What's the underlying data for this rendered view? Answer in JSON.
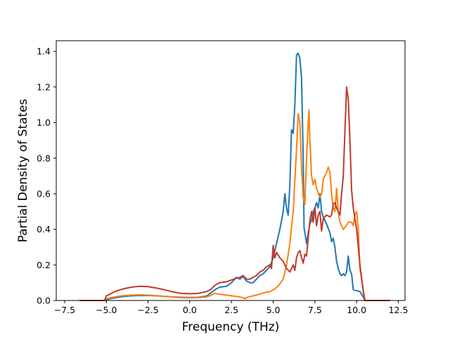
{
  "chart_data": {
    "type": "line",
    "title": "",
    "xlabel": "Frequency (THz)",
    "ylabel": "Partial Density of States",
    "xlim": [
      -8.0,
      12.9
    ],
    "ylim": [
      0.0,
      1.46
    ],
    "x_ticks": [
      -7.5,
      -5.0,
      -2.5,
      0.0,
      2.5,
      5.0,
      7.5,
      10.0,
      12.5
    ],
    "x_tick_labels": [
      "−7.5",
      "−5.0",
      "−2.5",
      "0.0",
      "2.5",
      "5.0",
      "7.5",
      "10.0",
      "12.5"
    ],
    "y_ticks": [
      0.0,
      0.2,
      0.4,
      0.6,
      0.8,
      1.0,
      1.2,
      1.4
    ],
    "y_tick_labels": [
      "0.0",
      "0.2",
      "0.4",
      "0.6",
      "0.8",
      "1.0",
      "1.2",
      "1.4"
    ],
    "grid": false,
    "legend": "none",
    "series": [
      {
        "color": "#1f77b4",
        "points": [
          [
            -6.6,
            0
          ],
          [
            -5.1,
            0
          ],
          [
            -5.0,
            0.005
          ],
          [
            -4.5,
            0.015
          ],
          [
            -4.0,
            0.022
          ],
          [
            -3.5,
            0.026
          ],
          [
            -3.0,
            0.028
          ],
          [
            -2.5,
            0.028
          ],
          [
            -2.0,
            0.026
          ],
          [
            -1.5,
            0.023
          ],
          [
            -1.0,
            0.02
          ],
          [
            -0.5,
            0.018
          ],
          [
            0.0,
            0.017
          ],
          [
            0.5,
            0.018
          ],
          [
            1.0,
            0.025
          ],
          [
            1.3,
            0.045
          ],
          [
            1.5,
            0.06
          ],
          [
            1.8,
            0.075
          ],
          [
            2.2,
            0.08
          ],
          [
            2.5,
            0.1
          ],
          [
            2.8,
            0.13
          ],
          [
            3.0,
            0.12
          ],
          [
            3.2,
            0.135
          ],
          [
            3.4,
            0.11
          ],
          [
            3.6,
            0.1
          ],
          [
            3.8,
            0.1
          ],
          [
            4.0,
            0.12
          ],
          [
            4.2,
            0.14
          ],
          [
            4.4,
            0.15
          ],
          [
            4.6,
            0.17
          ],
          [
            4.8,
            0.19
          ],
          [
            5.0,
            0.24
          ],
          [
            5.2,
            0.32
          ],
          [
            5.4,
            0.4
          ],
          [
            5.6,
            0.5
          ],
          [
            5.7,
            0.6
          ],
          [
            5.8,
            0.52
          ],
          [
            5.9,
            0.48
          ],
          [
            6.0,
            0.65
          ],
          [
            6.1,
            0.96
          ],
          [
            6.2,
            0.94
          ],
          [
            6.3,
            1.1
          ],
          [
            6.4,
            1.38
          ],
          [
            6.5,
            1.39
          ],
          [
            6.6,
            1.36
          ],
          [
            6.7,
            1.25
          ],
          [
            6.8,
            0.8
          ],
          [
            6.85,
            0.41
          ],
          [
            6.9,
            0.38
          ],
          [
            7.0,
            0.32
          ],
          [
            7.1,
            0.38
          ],
          [
            7.2,
            0.43
          ],
          [
            7.3,
            0.45
          ],
          [
            7.4,
            0.5
          ],
          [
            7.5,
            0.52
          ],
          [
            7.6,
            0.55
          ],
          [
            7.7,
            0.52
          ],
          [
            7.8,
            0.6
          ],
          [
            7.9,
            0.5
          ],
          [
            8.0,
            0.47
          ],
          [
            8.2,
            0.43
          ],
          [
            8.4,
            0.38
          ],
          [
            8.5,
            0.33
          ],
          [
            8.6,
            0.35
          ],
          [
            8.7,
            0.3
          ],
          [
            8.8,
            0.22
          ],
          [
            8.9,
            0.18
          ],
          [
            9.0,
            0.15
          ],
          [
            9.1,
            0.14
          ],
          [
            9.2,
            0.15
          ],
          [
            9.3,
            0.14
          ],
          [
            9.4,
            0.16
          ],
          [
            9.5,
            0.25
          ],
          [
            9.6,
            0.17
          ],
          [
            9.7,
            0.15
          ],
          [
            9.8,
            0.06
          ],
          [
            10.0,
            0.055
          ],
          [
            10.2,
            0.05
          ],
          [
            10.4,
            0.02
          ],
          [
            10.5,
            0.0
          ],
          [
            12.0,
            0.0
          ]
        ]
      },
      {
        "color": "#ff7f0e",
        "points": [
          [
            -6.6,
            0
          ],
          [
            -5.1,
            0
          ],
          [
            -5.0,
            0.01
          ],
          [
            -4.5,
            0.02
          ],
          [
            -4.0,
            0.027
          ],
          [
            -3.5,
            0.03
          ],
          [
            -3.0,
            0.032
          ],
          [
            -2.5,
            0.03
          ],
          [
            -2.0,
            0.027
          ],
          [
            -1.5,
            0.023
          ],
          [
            -1.0,
            0.019
          ],
          [
            -0.5,
            0.016
          ],
          [
            0.0,
            0.015
          ],
          [
            0.5,
            0.016
          ],
          [
            1.0,
            0.02
          ],
          [
            1.3,
            0.03
          ],
          [
            1.5,
            0.04
          ],
          [
            1.8,
            0.035
          ],
          [
            2.2,
            0.03
          ],
          [
            2.6,
            0.025
          ],
          [
            3.0,
            0.02
          ],
          [
            3.2,
            0.015
          ],
          [
            3.3,
            0.01
          ],
          [
            3.5,
            0.02
          ],
          [
            4.0,
            0.03
          ],
          [
            4.5,
            0.045
          ],
          [
            4.8,
            0.05
          ],
          [
            5.0,
            0.06
          ],
          [
            5.3,
            0.08
          ],
          [
            5.6,
            0.12
          ],
          [
            5.8,
            0.2
          ],
          [
            6.0,
            0.32
          ],
          [
            6.2,
            0.5
          ],
          [
            6.4,
            0.85
          ],
          [
            6.5,
            1.05
          ],
          [
            6.6,
            1.0
          ],
          [
            6.7,
            0.75
          ],
          [
            6.8,
            0.58
          ],
          [
            6.9,
            0.54
          ],
          [
            7.0,
            0.8
          ],
          [
            7.1,
            1.0
          ],
          [
            7.15,
            1.07
          ],
          [
            7.2,
            0.9
          ],
          [
            7.3,
            0.7
          ],
          [
            7.4,
            0.65
          ],
          [
            7.5,
            0.68
          ],
          [
            7.6,
            0.63
          ],
          [
            7.8,
            0.58
          ],
          [
            7.9,
            0.6
          ],
          [
            8.0,
            0.68
          ],
          [
            8.2,
            0.72
          ],
          [
            8.3,
            0.75
          ],
          [
            8.4,
            0.72
          ],
          [
            8.5,
            0.6
          ],
          [
            8.6,
            0.52
          ],
          [
            8.7,
            0.5
          ],
          [
            8.8,
            0.63
          ],
          [
            8.9,
            0.5
          ],
          [
            9.0,
            0.44
          ],
          [
            9.1,
            0.42
          ],
          [
            9.2,
            0.4
          ],
          [
            9.3,
            0.41
          ],
          [
            9.5,
            0.44
          ],
          [
            9.7,
            0.44
          ],
          [
            9.8,
            0.42
          ],
          [
            9.9,
            0.48
          ],
          [
            10.0,
            0.5
          ],
          [
            10.1,
            0.4
          ],
          [
            10.2,
            0.18
          ],
          [
            10.4,
            0.06
          ],
          [
            10.5,
            0.0
          ],
          [
            12.0,
            0.0
          ]
        ]
      },
      {
        "color": "#c0392b",
        "points": [
          [
            -6.6,
            0
          ],
          [
            -5.1,
            0
          ],
          [
            -5.0,
            0.025
          ],
          [
            -4.5,
            0.05
          ],
          [
            -4.0,
            0.065
          ],
          [
            -3.5,
            0.075
          ],
          [
            -3.0,
            0.08
          ],
          [
            -2.5,
            0.078
          ],
          [
            -2.0,
            0.07
          ],
          [
            -1.5,
            0.06
          ],
          [
            -1.0,
            0.048
          ],
          [
            -0.5,
            0.04
          ],
          [
            0.0,
            0.038
          ],
          [
            0.5,
            0.04
          ],
          [
            1.0,
            0.05
          ],
          [
            1.3,
            0.065
          ],
          [
            1.5,
            0.085
          ],
          [
            1.8,
            0.1
          ],
          [
            2.2,
            0.105
          ],
          [
            2.5,
            0.115
          ],
          [
            2.8,
            0.125
          ],
          [
            3.0,
            0.13
          ],
          [
            3.2,
            0.14
          ],
          [
            3.4,
            0.12
          ],
          [
            3.6,
            0.12
          ],
          [
            3.8,
            0.13
          ],
          [
            4.0,
            0.14
          ],
          [
            4.2,
            0.16
          ],
          [
            4.4,
            0.17
          ],
          [
            4.6,
            0.19
          ],
          [
            4.8,
            0.2
          ],
          [
            4.9,
            0.18
          ],
          [
            5.0,
            0.31
          ],
          [
            5.1,
            0.24
          ],
          [
            5.2,
            0.27
          ],
          [
            5.4,
            0.24
          ],
          [
            5.6,
            0.22
          ],
          [
            5.8,
            0.18
          ],
          [
            6.0,
            0.16
          ],
          [
            6.2,
            0.2
          ],
          [
            6.3,
            0.17
          ],
          [
            6.4,
            0.24
          ],
          [
            6.5,
            0.27
          ],
          [
            6.6,
            0.28
          ],
          [
            6.7,
            0.24
          ],
          [
            6.8,
            0.21
          ],
          [
            6.9,
            0.26
          ],
          [
            7.0,
            0.25
          ],
          [
            7.1,
            0.35
          ],
          [
            7.2,
            0.45
          ],
          [
            7.3,
            0.5
          ],
          [
            7.4,
            0.44
          ],
          [
            7.5,
            0.52
          ],
          [
            7.6,
            0.42
          ],
          [
            7.7,
            0.48
          ],
          [
            7.8,
            0.5
          ],
          [
            7.9,
            0.39
          ],
          [
            8.0,
            0.46
          ],
          [
            8.2,
            0.48
          ],
          [
            8.4,
            0.47
          ],
          [
            8.5,
            0.48
          ],
          [
            8.6,
            0.54
          ],
          [
            8.7,
            0.55
          ],
          [
            8.8,
            0.52
          ],
          [
            8.9,
            0.5
          ],
          [
            9.0,
            0.48
          ],
          [
            9.1,
            0.6
          ],
          [
            9.2,
            0.7
          ],
          [
            9.3,
            0.95
          ],
          [
            9.4,
            1.2
          ],
          [
            9.5,
            1.13
          ],
          [
            9.6,
            0.9
          ],
          [
            9.7,
            0.62
          ],
          [
            9.8,
            0.52
          ],
          [
            10.0,
            0.4
          ],
          [
            10.2,
            0.2
          ],
          [
            10.4,
            0.05
          ],
          [
            10.5,
            0.0
          ],
          [
            12.0,
            0.0
          ]
        ]
      }
    ]
  }
}
